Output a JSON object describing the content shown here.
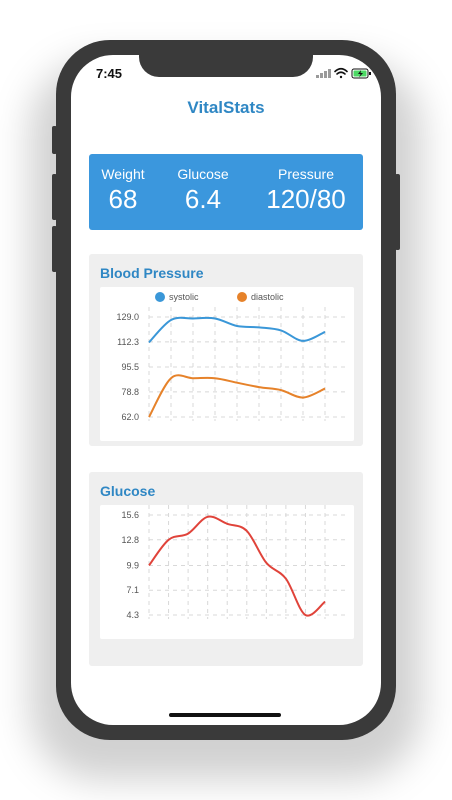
{
  "status_bar": {
    "time": "7:45"
  },
  "app": {
    "title": "VitalStats"
  },
  "stats": [
    {
      "label": "Weight",
      "value": "68"
    },
    {
      "label": "Glucose",
      "value": "6.4"
    },
    {
      "label": "Pressure",
      "value": "120/80"
    }
  ],
  "colors": {
    "accent": "#3b97dd",
    "title": "#2f87c4",
    "systolic": "#3a97d8",
    "diastolic": "#e6822a",
    "glucose": "#e0433a"
  },
  "chart_data": [
    {
      "type": "line",
      "title": "Blood Pressure",
      "legend": [
        "systolic",
        "diastolic"
      ],
      "legend_position": "top",
      "yticks": [
        "129.0",
        "112.3",
        "95.5",
        "78.8",
        "62.0"
      ],
      "ylim": [
        62.0,
        129.0
      ],
      "grid": true,
      "series": [
        {
          "name": "systolic",
          "values": [
            112,
            127,
            128,
            128,
            123,
            122,
            120,
            113,
            119
          ]
        },
        {
          "name": "diastolic",
          "values": [
            62,
            88,
            88,
            88,
            85,
            82,
            80,
            75,
            81
          ]
        }
      ]
    },
    {
      "type": "line",
      "title": "Glucose",
      "yticks": [
        "15.6",
        "12.8",
        "9.9",
        "7.1",
        "4.3"
      ],
      "ylim": [
        4.3,
        15.6
      ],
      "grid": true,
      "series": [
        {
          "values": [
            9.9,
            12.8,
            13.5,
            15.4,
            14.6,
            13.8,
            10.2,
            8.4,
            4.3,
            5.8
          ]
        }
      ]
    }
  ]
}
